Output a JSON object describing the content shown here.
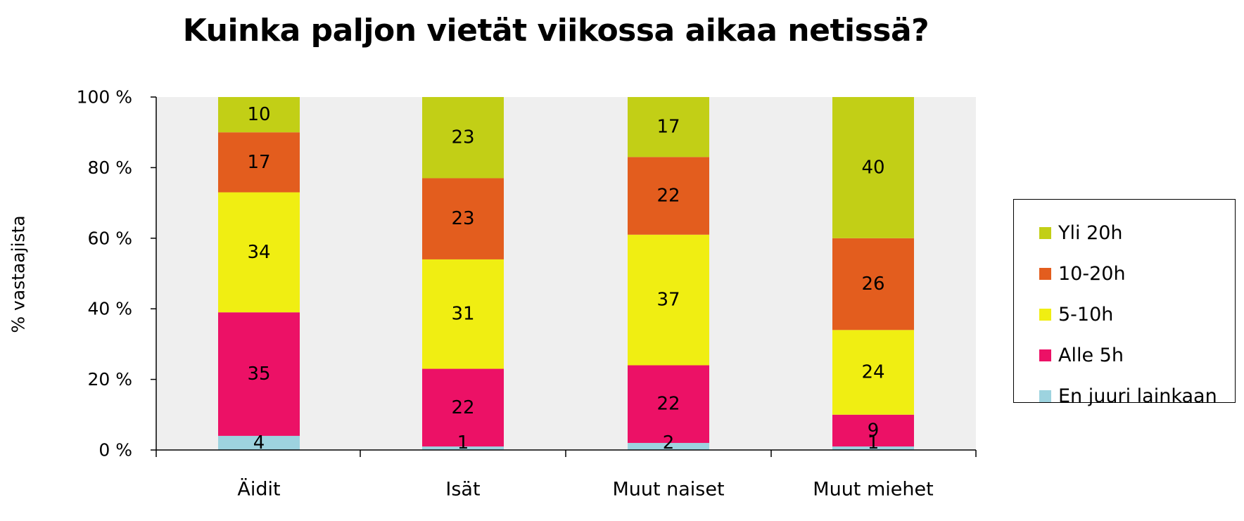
{
  "chart_data": {
    "type": "bar",
    "stacked": true,
    "title": "Kuinka paljon vietät viikossa aikaa netissä?",
    "ylabel": "% vastaajista",
    "xlabel": "",
    "ylim": [
      0,
      100
    ],
    "yticks": [
      "0 %",
      "20 %",
      "40 %",
      "60 %",
      "80 %",
      "100 %"
    ],
    "ytick_values": [
      0,
      20,
      40,
      60,
      80,
      100
    ],
    "categories": [
      "Äidit",
      "Isät",
      "Muut naiset",
      "Muut miehet"
    ],
    "series": [
      {
        "name": "En juuri lainkaan",
        "color": "#9dd3df",
        "values": [
          4,
          1,
          2,
          1
        ]
      },
      {
        "name": "Alle 5h",
        "color": "#ec1166",
        "values": [
          35,
          22,
          22,
          9
        ]
      },
      {
        "name": "5-10h",
        "color": "#f0ee12",
        "values": [
          34,
          31,
          37,
          24
        ]
      },
      {
        "name": "10-20h",
        "color": "#e35d1e",
        "values": [
          17,
          23,
          22,
          26
        ]
      },
      {
        "name": "Yli 20h",
        "color": "#c2cf16",
        "values": [
          10,
          23,
          17,
          40
        ]
      }
    ],
    "legend_order": [
      "Yli 20h",
      "10-20h",
      "5-10h",
      "Alle 5h",
      "En juuri lainkaan"
    ],
    "legend_position": "right",
    "plot_background": "#efefef",
    "grid": false
  }
}
